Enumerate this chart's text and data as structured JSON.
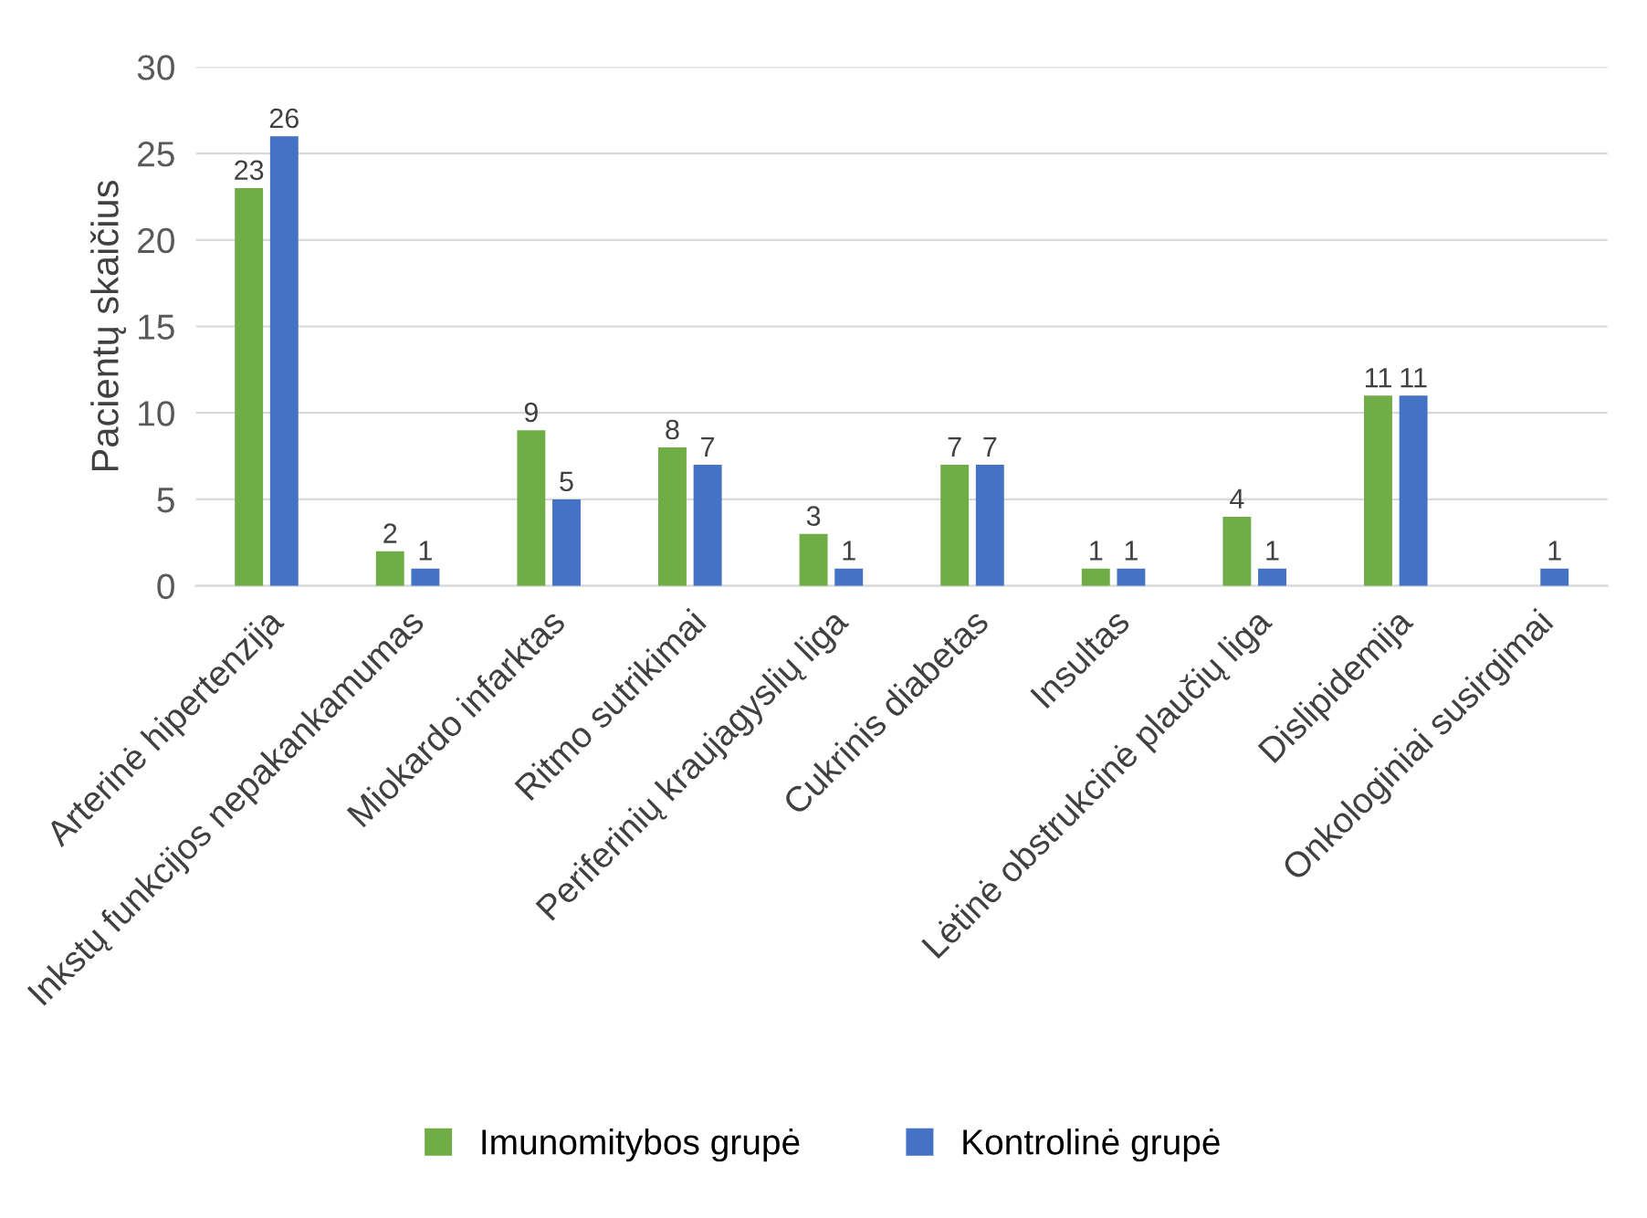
{
  "chart_data": {
    "type": "bar",
    "ylabel": "Pacientų skaičius",
    "categories": [
      "Arterinė hipertenzija",
      "Inkstų funkcijos nepakankamumas",
      "Miokardo infarktas",
      "Ritmo sutrikimai",
      "Periferinių kraujagyslių liga",
      "Cukrinis diabetas",
      "Insultas",
      "Lėtinė obstrukcinė plaučių liga",
      "Dislipidemija",
      "Onkologiniai susirgimai"
    ],
    "series": [
      {
        "name": "Imunomitybos grupė",
        "color": "#70ad47",
        "values": [
          23,
          2,
          9,
          8,
          3,
          7,
          1,
          4,
          11,
          null
        ]
      },
      {
        "name": "Kontrolinė grupė",
        "color": "#4472c4",
        "values": [
          26,
          1,
          5,
          7,
          1,
          7,
          1,
          1,
          11,
          1
        ]
      }
    ],
    "ylim": [
      0,
      30
    ],
    "yticks": [
      0,
      5,
      10,
      15,
      20,
      25,
      30
    ],
    "grid": "y",
    "legend": "bottom",
    "data_labels": true
  }
}
